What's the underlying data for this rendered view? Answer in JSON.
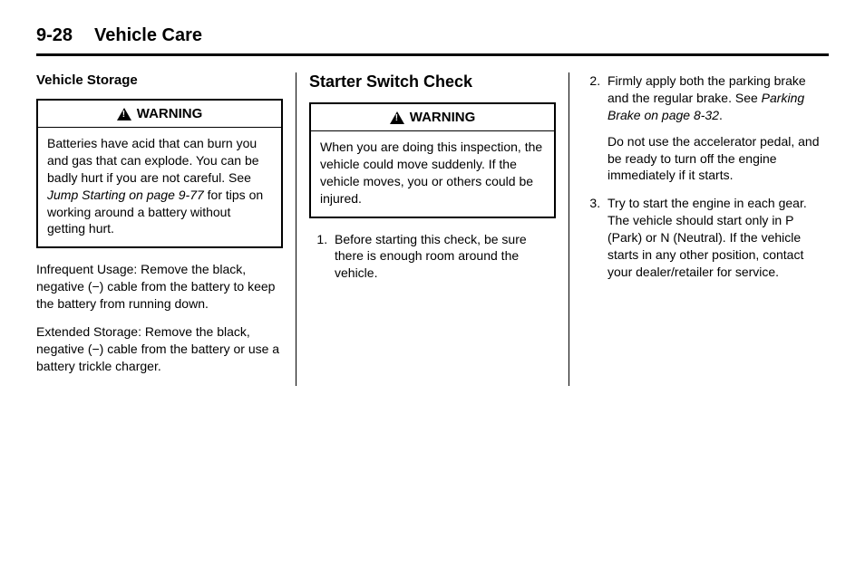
{
  "header": {
    "page_number": "9-28",
    "section_title": "Vehicle Care"
  },
  "col1": {
    "heading": "Vehicle Storage",
    "warning_label": "WARNING",
    "warning_body_pre": "Batteries have acid that can burn you and gas that can explode. You can be badly hurt if you are not careful. See ",
    "warning_body_italic": "Jump Starting on page 9‑77",
    "warning_body_post": " for tips on working around a battery without getting hurt.",
    "para1": "Infrequent Usage: Remove the black, negative (−) cable from the battery to keep the battery from running down.",
    "para2": "Extended Storage: Remove the black, negative (−) cable from the battery or use a battery trickle charger."
  },
  "col2": {
    "heading": "Starter Switch Check",
    "warning_label": "WARNING",
    "warning_body": "When you are doing this inspection, the vehicle could move suddenly. If the vehicle moves, you or others could be injured.",
    "step1": "Before starting this check, be sure there is enough room around the vehicle."
  },
  "col3": {
    "step2_pre": "Firmly apply both the parking brake and the regular brake. See ",
    "step2_italic": "Parking Brake on page 8‑32",
    "step2_post": ".",
    "step2_sub": "Do not use the accelerator pedal, and be ready to turn off the engine immediately if it starts.",
    "step3": "Try to start the engine in each gear. The vehicle should start only in P (Park) or N (Neutral). If the vehicle starts in any other position, contact your dealer/retailer for service."
  }
}
